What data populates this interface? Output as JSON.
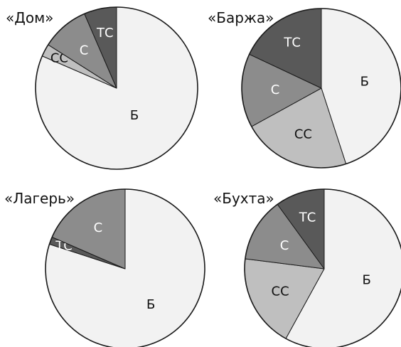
{
  "chart_data": [
    {
      "type": "pie",
      "title": "«Дом»",
      "start_angle": "12 o'clock, clockwise",
      "slices": [
        {
          "label": "Б",
          "value": 81.5,
          "color": "#f2f2f2",
          "text_color": "#111111"
        },
        {
          "label": "СС",
          "value": 2.5,
          "color": "#bfbfbf",
          "text_color": "#111111"
        },
        {
          "label": "С",
          "value": 9.5,
          "color": "#8c8c8c",
          "text_color": "#ffffff"
        },
        {
          "label": "ТС",
          "value": 6.5,
          "color": "#595959",
          "text_color": "#ffffff"
        }
      ]
    },
    {
      "type": "pie",
      "title": "«Баржа»",
      "start_angle": "12 o'clock, clockwise",
      "slices": [
        {
          "label": "Б",
          "value": 45,
          "color": "#f2f2f2",
          "text_color": "#111111"
        },
        {
          "label": "СС",
          "value": 22,
          "color": "#bfbfbf",
          "text_color": "#111111"
        },
        {
          "label": "С",
          "value": 15,
          "color": "#8c8c8c",
          "text_color": "#ffffff"
        },
        {
          "label": "ТС",
          "value": 18,
          "color": "#595959",
          "text_color": "#ffffff"
        }
      ]
    },
    {
      "type": "pie",
      "title": "«Лагерь»",
      "start_angle": "12 o'clock, clockwise",
      "slices": [
        {
          "label": "Б",
          "value": 80,
          "color": "#f2f2f2",
          "text_color": "#111111"
        },
        {
          "label": "ТС",
          "value": 1.5,
          "color": "#595959",
          "text_color": "#ffffff"
        },
        {
          "label": "С",
          "value": 18.5,
          "color": "#8c8c8c",
          "text_color": "#ffffff"
        }
      ]
    },
    {
      "type": "pie",
      "title": "«Бухта»",
      "start_angle": "12 o'clock, clockwise",
      "slices": [
        {
          "label": "Б",
          "value": 58,
          "color": "#f2f2f2",
          "text_color": "#111111"
        },
        {
          "label": "СС",
          "value": 19,
          "color": "#bfbfbf",
          "text_color": "#111111"
        },
        {
          "label": "С",
          "value": 13,
          "color": "#8c8c8c",
          "text_color": "#ffffff"
        },
        {
          "label": "ТС",
          "value": 10,
          "color": "#595959",
          "text_color": "#ffffff"
        }
      ]
    }
  ]
}
